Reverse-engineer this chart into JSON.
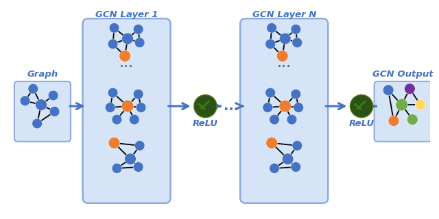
{
  "bg_color": "#ffffff",
  "node_blue": "#4472C4",
  "node_orange": "#ED7D31",
  "node_green_light": "#70AD47",
  "node_purple": "#7030A0",
  "node_yellow": "#FFD966",
  "node_green2": "#70AD47",
  "relu_green_dark": "#2D5016",
  "relu_green_light": "#4E7A1E",
  "box_fill": "#D6E4F7",
  "box_edge": "#8FAADC",
  "arrow_color": "#4472C4",
  "label_color": "#4472C4",
  "title1": "GCN Layer 1",
  "title2": "GCN Layer N",
  "label_graph": "Graph",
  "label_output": "GCN Output",
  "label_relu": "ReLU",
  "dots_color": "#555555"
}
